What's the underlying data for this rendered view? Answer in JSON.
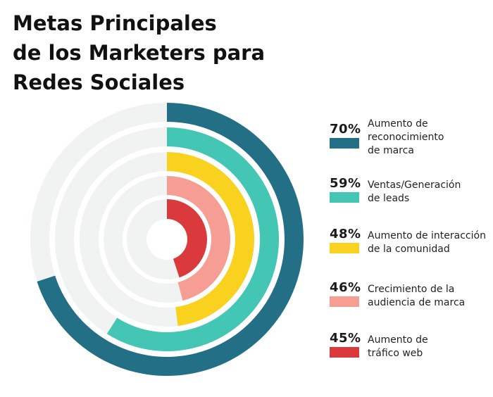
{
  "title_lines": [
    "Metas Principales",
    "de los Marketers para",
    "Redes Sociales"
  ],
  "chart_data": {
    "type": "radial-bar",
    "title": "Metas Principales de los Marketers para Redes Sociales",
    "unit": "%",
    "max": 100,
    "track_color": "#f1f2f2",
    "legend_placement": "right",
    "series": [
      {
        "value": 70,
        "label": "70%",
        "name_lines": [
          "Aumento de",
          "reconocimiento",
          "de marca"
        ],
        "color": "#236f85"
      },
      {
        "value": 59,
        "label": "59%",
        "name_lines": [
          "Ventas/Generación",
          "de leads"
        ],
        "color": "#43c6b4"
      },
      {
        "value": 48,
        "label": "48%",
        "name_lines": [
          "Aumento de interacción",
          "de la comunidad"
        ],
        "color": "#f9d11f"
      },
      {
        "value": 46,
        "label": "46%",
        "name_lines": [
          "Crecimiento de la",
          "audiencia de marca"
        ],
        "color": "#f69e93"
      },
      {
        "value": 45,
        "label": "45%",
        "name_lines": [
          "Aumento de",
          "tráfico web"
        ],
        "color": "#db3a3c"
      }
    ]
  }
}
